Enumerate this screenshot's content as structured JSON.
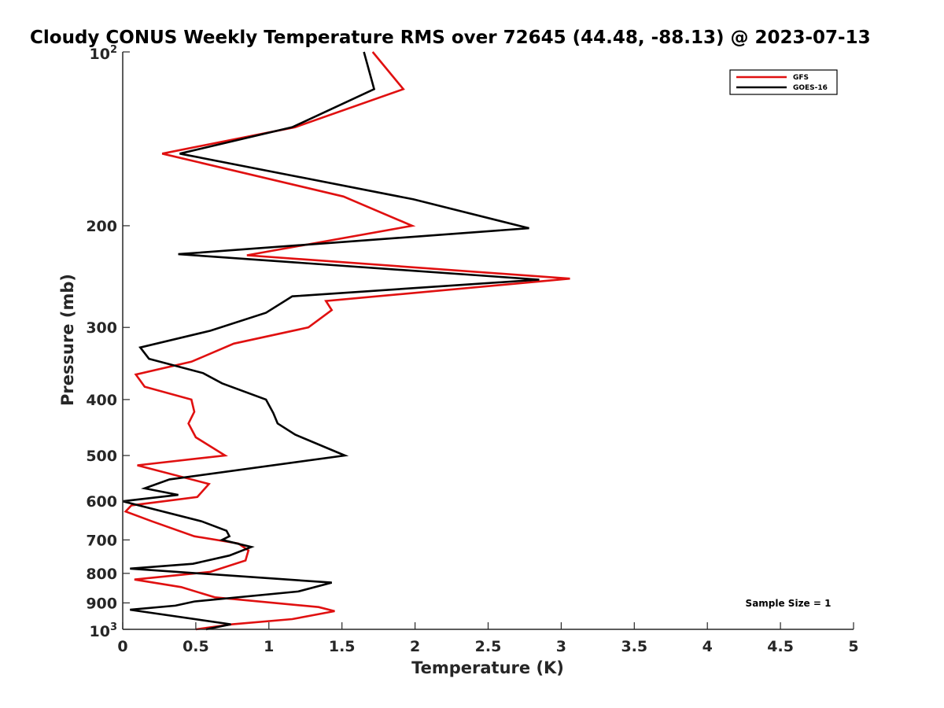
{
  "chart_data": {
    "type": "line",
    "title": "Cloudy CONUS Weekly Temperature RMS over 72645 (44.48, -88.13) @ 2023-07-13",
    "xlabel": "Temperature (K)",
    "ylabel": "Pressure (mb)",
    "xlim": [
      0,
      5
    ],
    "ylim": [
      100,
      1000
    ],
    "y_scale": "log",
    "y_reversed": true,
    "grid": false,
    "legend": "top-right",
    "x_ticks": [
      "0",
      "0.5",
      "1",
      "1.5",
      "2",
      "2.5",
      "3",
      "3.5",
      "4",
      "4.5",
      "5"
    ],
    "y_ticks": [
      {
        "value": 100,
        "base": "10",
        "exp": "2"
      },
      {
        "value": 200,
        "label": "200"
      },
      {
        "value": 300,
        "label": "300"
      },
      {
        "value": 400,
        "label": "400"
      },
      {
        "value": 500,
        "label": "500"
      },
      {
        "value": 600,
        "label": "600"
      },
      {
        "value": 700,
        "label": "700"
      },
      {
        "value": 800,
        "label": "800"
      },
      {
        "value": 900,
        "label": "900"
      },
      {
        "value": 1000,
        "base": "10",
        "exp": "3"
      }
    ],
    "annotation": "Sample Size = 1",
    "series": [
      {
        "name": "GFS",
        "color": "#e01010",
        "points": [
          [
            1.71,
            100
          ],
          [
            1.92,
            116
          ],
          [
            1.18,
            135
          ],
          [
            0.27,
            150
          ],
          [
            1.51,
            178
          ],
          [
            1.98,
            200
          ],
          [
            0.85,
            225
          ],
          [
            3.06,
            247
          ],
          [
            1.39,
            270
          ],
          [
            1.43,
            280
          ],
          [
            1.27,
            300
          ],
          [
            0.76,
            320
          ],
          [
            0.47,
            344
          ],
          [
            0.09,
            362
          ],
          [
            0.15,
            380
          ],
          [
            0.47,
            400
          ],
          [
            0.49,
            420
          ],
          [
            0.45,
            440
          ],
          [
            0.5,
            465
          ],
          [
            0.7,
            500
          ],
          [
            0.1,
            520
          ],
          [
            0.59,
            560
          ],
          [
            0.51,
            590
          ],
          [
            0.06,
            610
          ],
          [
            0.02,
            625
          ],
          [
            0.2,
            650
          ],
          [
            0.49,
            690
          ],
          [
            0.79,
            710
          ],
          [
            0.86,
            730
          ],
          [
            0.84,
            760
          ],
          [
            0.6,
            795
          ],
          [
            0.08,
            820
          ],
          [
            0.4,
            845
          ],
          [
            0.63,
            880
          ],
          [
            1.34,
            915
          ],
          [
            1.45,
            930
          ],
          [
            1.16,
            960
          ],
          [
            0.75,
            980
          ],
          [
            0.5,
            1000
          ]
        ]
      },
      {
        "name": "GOES-16",
        "color": "#000000",
        "points": [
          [
            1.65,
            100
          ],
          [
            1.72,
            116
          ],
          [
            1.16,
            135
          ],
          [
            0.39,
            150
          ],
          [
            1.99,
            180
          ],
          [
            2.78,
            202
          ],
          [
            0.38,
            224
          ],
          [
            2.85,
            248
          ],
          [
            1.16,
            265
          ],
          [
            0.98,
            283
          ],
          [
            0.6,
            304
          ],
          [
            0.12,
            325
          ],
          [
            0.18,
            340
          ],
          [
            0.55,
            360
          ],
          [
            0.68,
            375
          ],
          [
            0.98,
            400
          ],
          [
            1.03,
            422
          ],
          [
            1.06,
            440
          ],
          [
            1.18,
            460
          ],
          [
            1.52,
            500
          ],
          [
            0.32,
            550
          ],
          [
            0.15,
            570
          ],
          [
            0.38,
            585
          ],
          [
            0.0,
            600
          ],
          [
            0.54,
            650
          ],
          [
            0.71,
            675
          ],
          [
            0.73,
            690
          ],
          [
            0.68,
            700
          ],
          [
            0.88,
            720
          ],
          [
            0.73,
            745
          ],
          [
            0.48,
            770
          ],
          [
            0.05,
            785
          ],
          [
            1.43,
            830
          ],
          [
            1.2,
            860
          ],
          [
            0.49,
            895
          ],
          [
            0.36,
            910
          ],
          [
            0.05,
            925
          ],
          [
            0.74,
            980
          ],
          [
            0.57,
            1000
          ]
        ]
      }
    ]
  }
}
